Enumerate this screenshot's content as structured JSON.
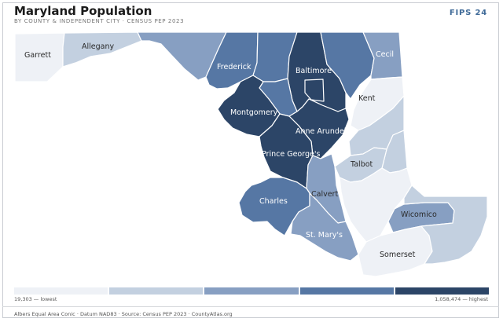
{
  "header": {
    "title": "Maryland Population",
    "subtitle": "BY COUNTY & INDEPENDENT CITY · CENSUS PEP 2023",
    "badge": "FIPS 24"
  },
  "colors": {
    "class1": "#eef1f6",
    "class2": "#c3d0e0",
    "class3": "#879fc2",
    "class4": "#5677a4",
    "class5": "#2c4567"
  },
  "map": {
    "counties": [
      {
        "id": "garrett",
        "label": "Garrett",
        "class": 1
      },
      {
        "id": "allegany",
        "label": "Allegany",
        "class": 2
      },
      {
        "id": "washington",
        "label": "",
        "class": 3
      },
      {
        "id": "frederick",
        "label": "Frederick",
        "class": 4
      },
      {
        "id": "carroll",
        "label": "",
        "class": 4
      },
      {
        "id": "baltimore",
        "label": "Baltimore",
        "class": 5
      },
      {
        "id": "baltimore-city",
        "label": "",
        "class": 5
      },
      {
        "id": "harford",
        "label": "",
        "class": 4
      },
      {
        "id": "cecil",
        "label": "Cecil",
        "class": 3
      },
      {
        "id": "howard",
        "label": "",
        "class": 4
      },
      {
        "id": "montgomery",
        "label": "Montgomery",
        "class": 5
      },
      {
        "id": "anne-arundel",
        "label": "Anne Arundel",
        "class": 5
      },
      {
        "id": "prince-georges",
        "label": "Prince George's",
        "class": 5
      },
      {
        "id": "kent",
        "label": "Kent",
        "class": 1
      },
      {
        "id": "queen-annes",
        "label": "",
        "class": 2
      },
      {
        "id": "caroline",
        "label": "",
        "class": 2
      },
      {
        "id": "talbot",
        "label": "Talbot",
        "class": 2
      },
      {
        "id": "calvert",
        "label": "Calvert",
        "class": 3
      },
      {
        "id": "charles",
        "label": "Charles",
        "class": 4
      },
      {
        "id": "st-marys",
        "label": "St. Mary's",
        "class": 3
      },
      {
        "id": "dorchester",
        "label": "",
        "class": 1
      },
      {
        "id": "wicomico",
        "label": "Wicomico",
        "class": 3
      },
      {
        "id": "somerset",
        "label": "Somerset",
        "class": 1
      },
      {
        "id": "worcester",
        "label": "",
        "class": 2
      }
    ]
  },
  "legend": {
    "low": "19,303 — lowest",
    "high": "1,058,474 — highest"
  },
  "footer": "Albers Equal Area Conic · Datum NAD83 · Source: Census PEP 2023 · CountyAtlas.org"
}
